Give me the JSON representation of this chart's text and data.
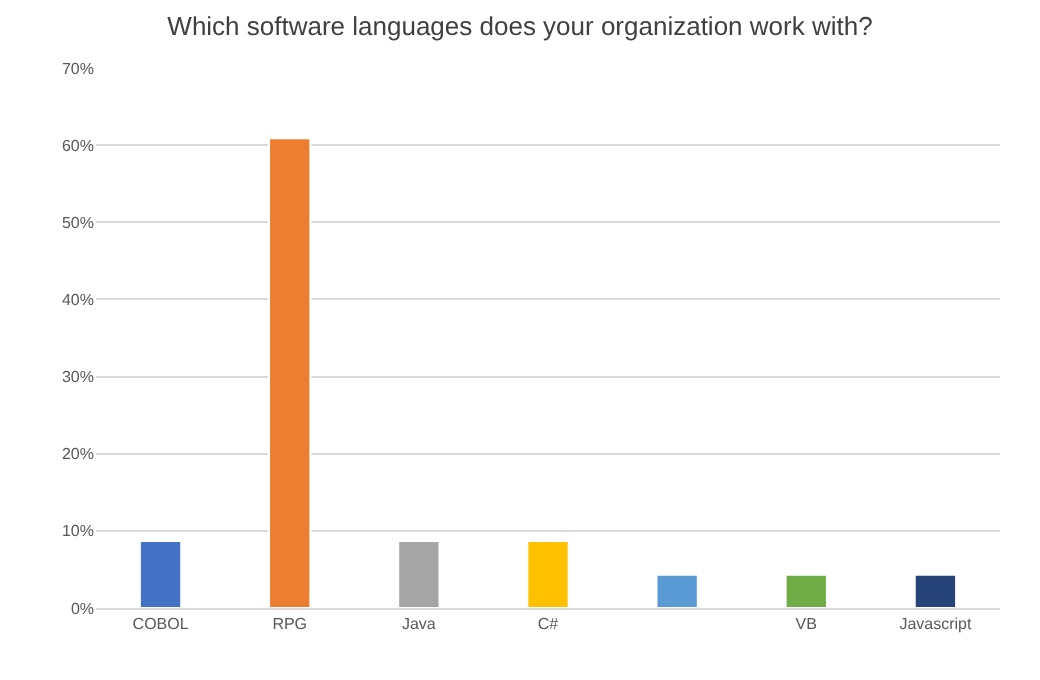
{
  "chart_data": {
    "type": "bar",
    "title": "Which software languages does your organization work with?",
    "categories": [
      "COBOL",
      "RPG",
      "Java",
      "C#",
      null,
      "VB",
      "Javascript"
    ],
    "values": [
      8.7,
      60.9,
      8.7,
      8.7,
      4.3,
      4.3,
      4.3
    ],
    "colors": [
      "#4472c4",
      "#ed7d31",
      "#a5a5a5",
      "#ffc000",
      "#5b9bd5",
      "#70ad47",
      "#264478"
    ],
    "ylim": [
      0,
      70
    ],
    "yticks": [
      {
        "value": 0,
        "label": "0%"
      },
      {
        "value": 10,
        "label": "10%"
      },
      {
        "value": 20,
        "label": "20%"
      },
      {
        "value": 30,
        "label": "30%"
      },
      {
        "value": 40,
        "label": "40%"
      },
      {
        "value": 50,
        "label": "50%"
      },
      {
        "value": 60,
        "label": "60%"
      },
      {
        "value": 70,
        "label": "70%"
      }
    ],
    "grid": "y"
  }
}
